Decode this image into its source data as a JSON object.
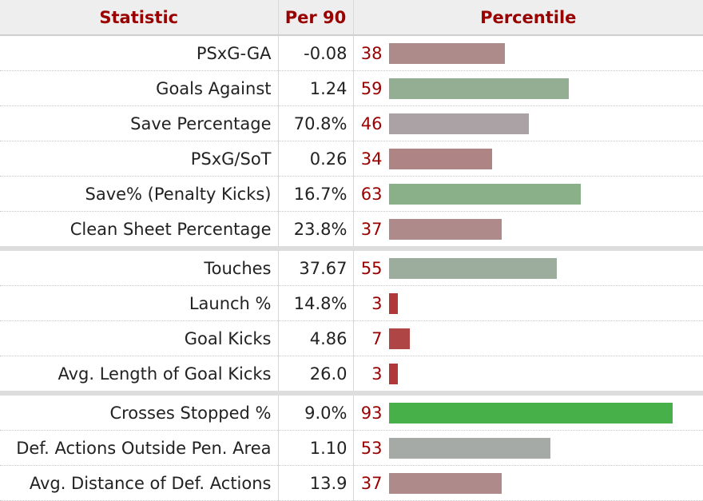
{
  "header": {
    "statistic": "Statistic",
    "per90": "Per 90",
    "percentile": "Percentile"
  },
  "chart_data": {
    "type": "bar",
    "orientation": "horizontal",
    "xlim": [
      0,
      100
    ],
    "groups": [
      [
        {
          "stat": "PSxG-GA",
          "per90": "-0.08",
          "percentile": 38,
          "color": "#ae8b8b"
        },
        {
          "stat": "Goals Against",
          "per90": "1.24",
          "percentile": 59,
          "color": "#93ae93"
        },
        {
          "stat": "Save Percentage",
          "per90": "70.8%",
          "percentile": 46,
          "color": "#aba2a5"
        },
        {
          "stat": "PSxG/SoT",
          "per90": "0.26",
          "percentile": 34,
          "color": "#ae8484"
        },
        {
          "stat": "Save% (Penalty Kicks)",
          "per90": "16.7%",
          "percentile": 63,
          "color": "#8ab08a"
        },
        {
          "stat": "Clean Sheet Percentage",
          "per90": "23.8%",
          "percentile": 37,
          "color": "#ae8a8a"
        }
      ],
      [
        {
          "stat": "Touches",
          "per90": "37.67",
          "percentile": 55,
          "color": "#9dad9d"
        },
        {
          "stat": "Launch %",
          "per90": "14.8%",
          "percentile": 3,
          "color": "#b03838"
        },
        {
          "stat": "Goal Kicks",
          "per90": "4.86",
          "percentile": 7,
          "color": "#b04545"
        },
        {
          "stat": "Avg. Length of Goal Kicks",
          "per90": "26.0",
          "percentile": 3,
          "color": "#b03838"
        }
      ],
      [
        {
          "stat": "Crosses Stopped %",
          "per90": "9.0%",
          "percentile": 93,
          "color": "#48b048"
        },
        {
          "stat": "Def. Actions Outside Pen. Area",
          "per90": "1.10",
          "percentile": 53,
          "color": "#a6aaa6"
        },
        {
          "stat": "Avg. Distance of Def. Actions",
          "per90": "13.9",
          "percentile": 37,
          "color": "#ae8a8a"
        }
      ]
    ]
  }
}
